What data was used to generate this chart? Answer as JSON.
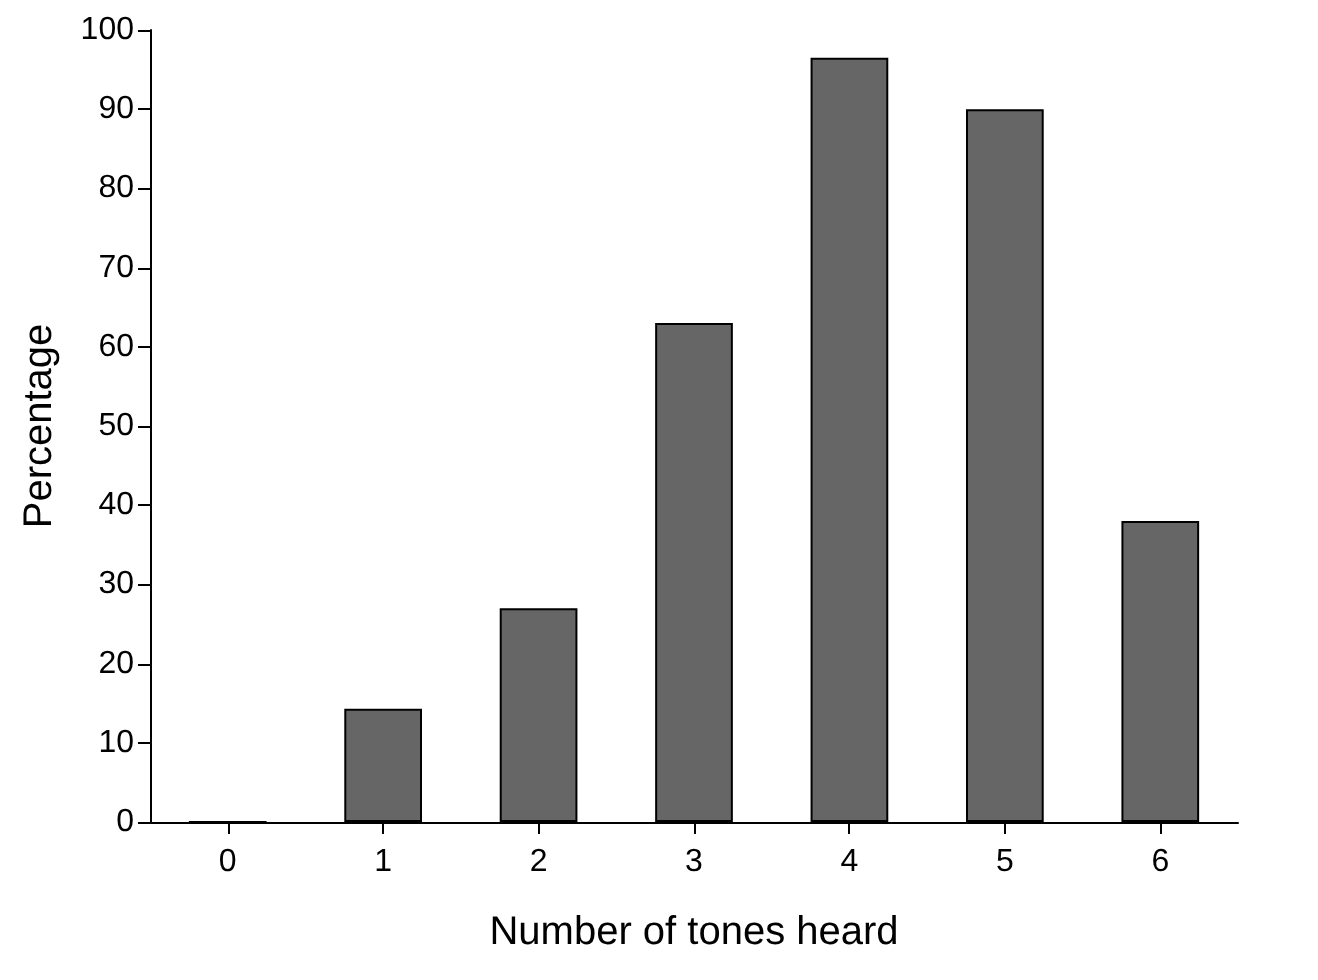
{
  "chart_data": {
    "type": "bar",
    "xlabel": "Number of tones heard",
    "ylabel": "Percentage",
    "categories": [
      "0",
      "1",
      "2",
      "3",
      "4",
      "5",
      "6"
    ],
    "values": [
      0,
      14.3,
      27,
      63,
      96.5,
      90,
      38
    ],
    "color": "#666666",
    "ylim": [
      0,
      100
    ],
    "yticks": [
      0,
      10,
      20,
      30,
      40,
      50,
      60,
      70,
      80,
      90,
      100
    ],
    "grid": false
  }
}
